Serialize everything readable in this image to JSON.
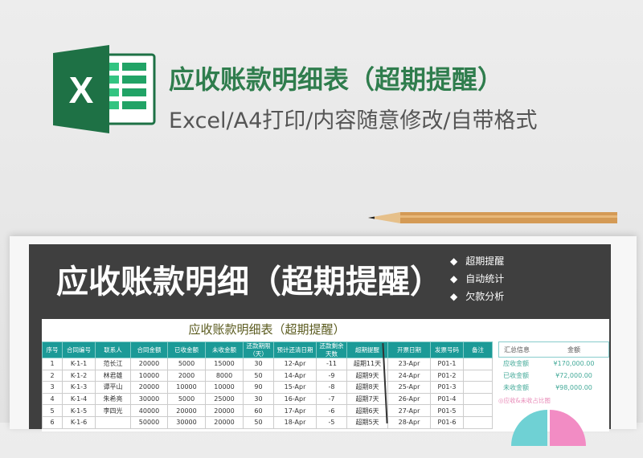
{
  "header": {
    "title": "应收账款明细表（超期提醒）",
    "subtitle": "Excel/A4打印/内容随意修改/自带格式",
    "logo_letter": "X"
  },
  "banner": {
    "title": "应收账款明细（超期提醒）",
    "features": [
      "超期提醒",
      "自动统计",
      "欠款分析"
    ],
    "bullet": "◆"
  },
  "sheet": {
    "title": "应收账款明细表（超期提醒）",
    "columns": [
      "序号",
      "合同编号",
      "联系人",
      "合同金额",
      "已收金额",
      "未收金额",
      "还款期限（天）",
      "预计还清日期",
      "还款剩余天数",
      "超期提醒",
      "开票日期",
      "发票号码",
      "备注"
    ],
    "rows": [
      [
        "1",
        "K-1-1",
        "范长江",
        "20000",
        "5000",
        "15000",
        "30",
        "12-Apr",
        "-11",
        "超期11天",
        "23-Apr",
        "P01-1",
        ""
      ],
      [
        "2",
        "K-1-2",
        "林君雄",
        "10000",
        "2000",
        "8000",
        "50",
        "14-Apr",
        "-9",
        "超期9天",
        "24-Apr",
        "P01-2",
        ""
      ],
      [
        "3",
        "K-1-3",
        "谭平山",
        "20000",
        "10000",
        "10000",
        "90",
        "15-Apr",
        "-8",
        "超期8天",
        "25-Apr",
        "P01-3",
        ""
      ],
      [
        "4",
        "K-1-4",
        "朱希亮",
        "30000",
        "5000",
        "25000",
        "30",
        "16-Apr",
        "-7",
        "超期7天",
        "26-Apr",
        "P01-4",
        ""
      ],
      [
        "5",
        "K-1-5",
        "李四光",
        "40000",
        "20000",
        "20000",
        "60",
        "17-Apr",
        "-6",
        "超期6天",
        "27-Apr",
        "P01-5",
        ""
      ],
      [
        "6",
        "K-1-6",
        "",
        "50000",
        "30000",
        "20000",
        "50",
        "18-Apr",
        "-5",
        "超期5天",
        "28-Apr",
        "P01-6",
        ""
      ]
    ],
    "summary": {
      "headers": [
        "汇总信息",
        "金额"
      ],
      "rows": [
        [
          "应收金额",
          "¥170,000.00"
        ],
        [
          "已收金额",
          "¥72,000.00"
        ],
        [
          "未收金额",
          "¥98,000.00"
        ]
      ],
      "chart_title": "◎应收&未收占比图"
    },
    "colors": {
      "header": "#1b9a97",
      "pie_received": "#f28cc4",
      "pie_unreceived": "#6fd1d4"
    }
  }
}
